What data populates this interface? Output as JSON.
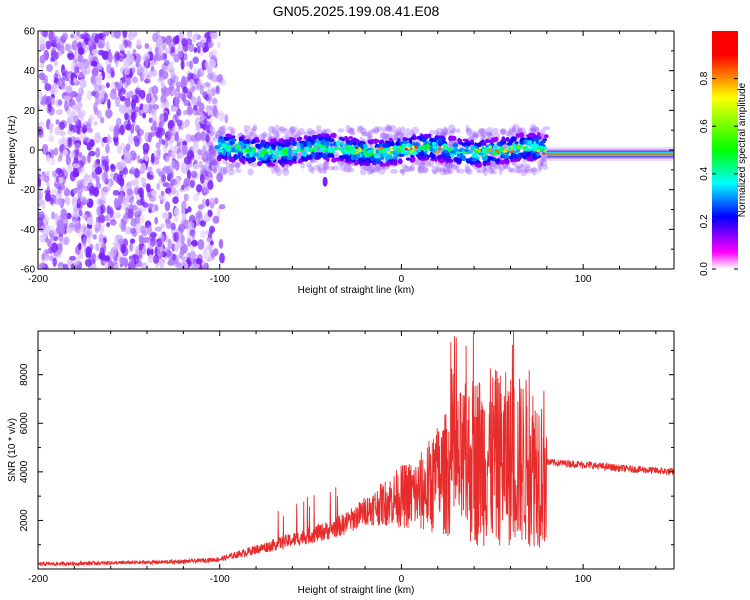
{
  "title": "GN05.2025.199.08.41.E08",
  "chart_data": [
    {
      "type": "heatmap",
      "xlabel": "Height of straight line (km)",
      "ylabel": "Frequency (Hz)",
      "xlim": [
        -200,
        150
      ],
      "ylim": [
        -60,
        60
      ],
      "x_ticks": [
        -200,
        -100,
        0,
        100
      ],
      "y_ticks": [
        -60,
        -40,
        -20,
        0,
        20,
        40,
        60
      ],
      "colorbar": {
        "label": "Normalized spectral amplitude",
        "range": [
          0,
          1
        ],
        "ticks": [
          0.0,
          0.2,
          0.4,
          0.6,
          0.8
        ],
        "tick_labels": [
          "0.0",
          "0.2",
          "0.4",
          "0.6",
          "0.8"
        ],
        "colormap": [
          "#ffffff",
          "#ff00ff",
          "#0000ff",
          "#00ffff",
          "#00ff00",
          "#ffff00",
          "#ff0000"
        ]
      },
      "regions": [
        {
          "x_range": [
            -200,
            -102
          ],
          "freq_range": [
            -60,
            60
          ],
          "amplitude": 0.05,
          "description_color": "#9b4dff"
        },
        {
          "x_range": [
            -102,
            80
          ],
          "center_freq": 0,
          "band_halfwidth_hz": 9,
          "amplitude": 0.3
        },
        {
          "x_range": [
            80,
            150
          ],
          "center_freq": -2,
          "band_halfwidth_hz": 3,
          "amplitude": 0.6
        }
      ]
    },
    {
      "type": "line",
      "xlabel": "Height of straight line (km)",
      "ylabel": "SNR (10 * v/v)",
      "xlim": [
        -200,
        150
      ],
      "ylim": [
        0,
        9800
      ],
      "x_ticks": [
        -200,
        -100,
        0,
        100
      ],
      "y_ticks": [
        2000,
        4000,
        6000,
        8000
      ],
      "color": "#e82c2c",
      "envelope_x": [
        -200,
        -120,
        -100,
        -80,
        -60,
        -40,
        -30,
        -20,
        -10,
        0,
        10,
        20,
        30,
        40,
        50,
        60,
        70,
        78,
        80,
        100,
        120,
        150
      ],
      "envelope_y": [
        200,
        300,
        400,
        800,
        1200,
        1600,
        1900,
        2400,
        2700,
        3000,
        3100,
        3700,
        4200,
        4500,
        4600,
        4500,
        4400,
        4200,
        4400,
        4300,
        4150,
        4000
      ]
    }
  ]
}
